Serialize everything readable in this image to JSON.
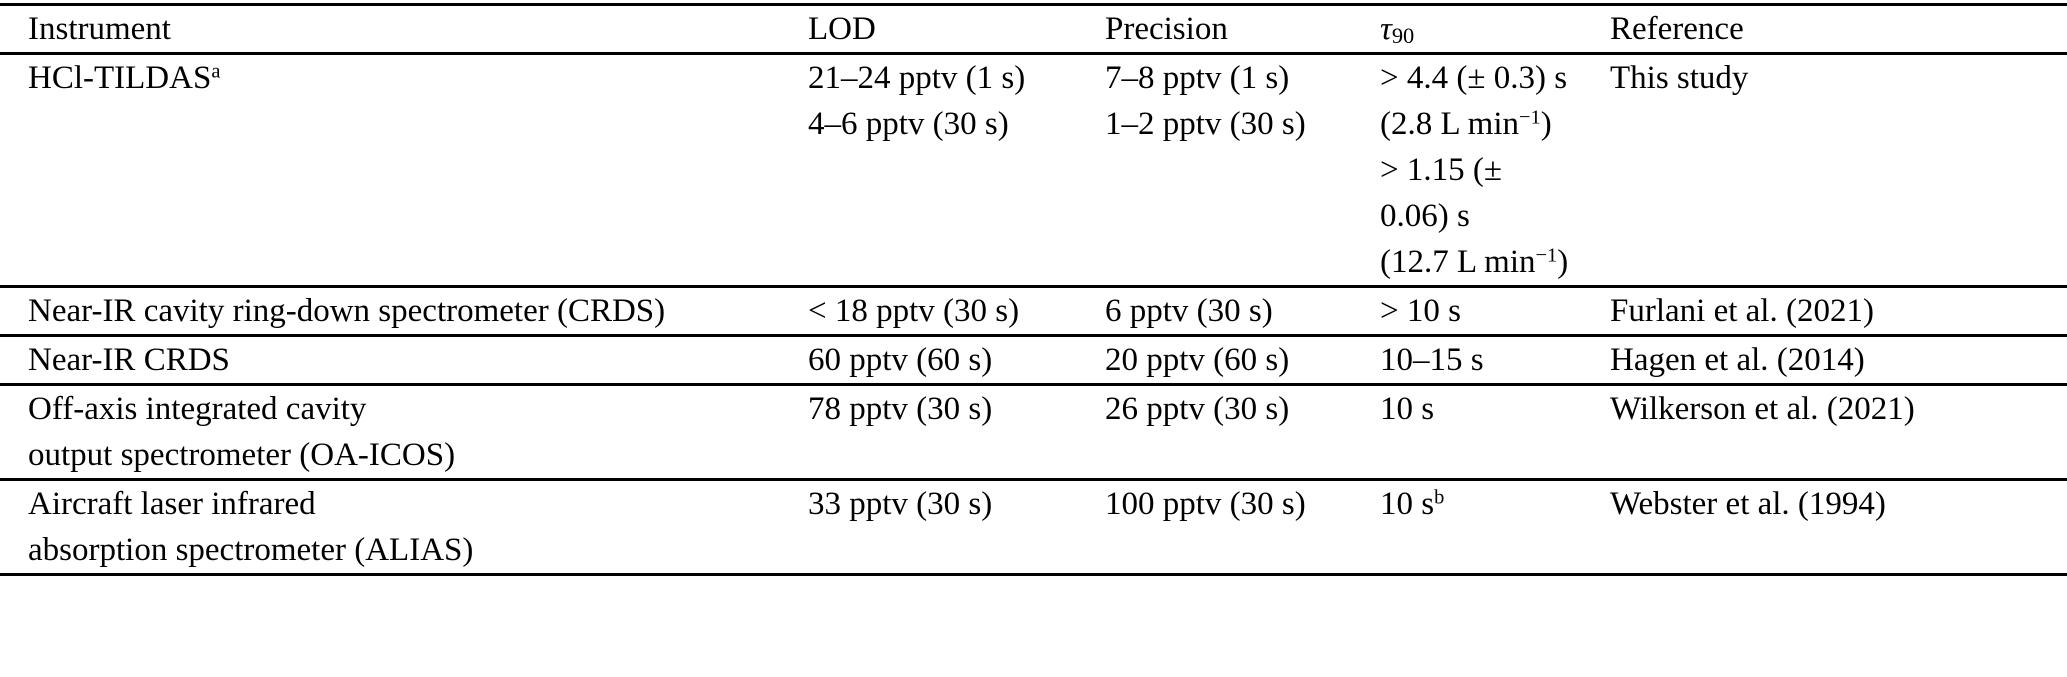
{
  "page": {
    "background_color": "#ffffff",
    "text_color": "#000000",
    "rule_color": "#000000"
  },
  "table": {
    "columns": [
      {
        "key": "instrument",
        "label": "Instrument"
      },
      {
        "key": "lod",
        "label": "LOD"
      },
      {
        "key": "precision",
        "label": "Precision"
      },
      {
        "key": "tau90",
        "label": "*τ*_{90}"
      },
      {
        "key": "reference",
        "label": "Reference"
      }
    ],
    "rows": [
      {
        "instrument": "HCl-TILDAS^{a}",
        "lod": "21–24 pptv (1 s)\n4–6 pptv (30 s)",
        "precision": "7–8 pptv (1 s)\n1–2 pptv (30 s)",
        "tau90": "> 4.4 (± 0.3) s\n(2.8 L min^{−1})\n> 1.15 (± 0.06) s\n(12.7 L min^{−1})",
        "reference": "This study"
      },
      {
        "instrument": "Near-IR cavity ring-down spectrometer (CRDS)",
        "lod": "< 18 pptv (30 s)",
        "precision": "6 pptv (30 s)",
        "tau90": "> 10 s",
        "reference": "Furlani et al. (2021)"
      },
      {
        "instrument": "Near-IR CRDS",
        "lod": "60 pptv (60 s)",
        "precision": "20 pptv (60 s)",
        "tau90": "10–15 s",
        "reference": "Hagen et al. (2014)"
      },
      {
        "instrument": "Off-axis integrated cavity\noutput spectrometer (OA-ICOS)",
        "lod": "78 pptv (30 s)",
        "precision": "26 pptv (30 s)",
        "tau90": "10 s",
        "reference": "Wilkerson et al. (2021)"
      },
      {
        "instrument": "Aircraft laser infrared\nabsorption spectrometer (ALIAS)",
        "lod": "33 pptv (30 s)",
        "precision": "100 pptv (30 s)",
        "tau90": "10 s^{b}",
        "reference": "Webster et al. (1994)"
      }
    ]
  }
}
